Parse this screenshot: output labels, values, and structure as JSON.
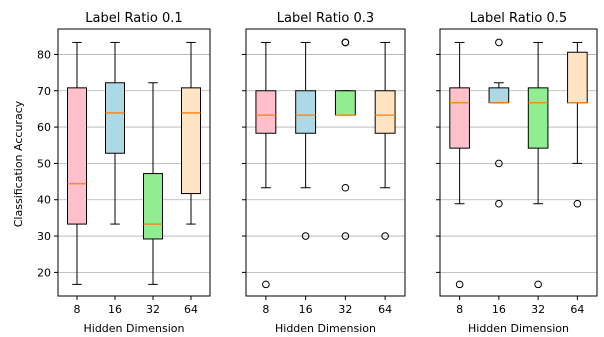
{
  "figure": {
    "ylabel": "Classification Accuracy",
    "xlabel": "Hidden Dimension"
  },
  "chart_data": [
    {
      "type": "box",
      "title": "Label Ratio 0.1",
      "xlabel": "Hidden Dimension",
      "ylabel": "Classification Accuracy",
      "categories": [
        "8",
        "16",
        "32",
        "64"
      ],
      "colors": [
        "#ffc0cb",
        "#add8e6",
        "#90ee90",
        "#ffe4c4"
      ],
      "ylim": [
        13.5,
        87
      ],
      "yticks": [
        20,
        30,
        40,
        50,
        60,
        70,
        80
      ],
      "grid": "horizontal",
      "boxes": [
        {
          "whisker_low": 16.7,
          "q1": 33.3,
          "median": 44.4,
          "q3": 70.8,
          "whisker_high": 83.3,
          "fliers": []
        },
        {
          "whisker_low": 33.3,
          "q1": 52.8,
          "median": 63.9,
          "q3": 72.2,
          "whisker_high": 83.3,
          "fliers": []
        },
        {
          "whisker_low": 16.7,
          "q1": 29.2,
          "median": 33.3,
          "q3": 47.2,
          "whisker_high": 72.2,
          "fliers": []
        },
        {
          "whisker_low": 33.3,
          "q1": 41.7,
          "median": 63.9,
          "q3": 70.8,
          "whisker_high": 83.3,
          "fliers": []
        }
      ]
    },
    {
      "type": "box",
      "title": "Label Ratio 0.3",
      "xlabel": "Hidden Dimension",
      "ylabel": "",
      "categories": [
        "8",
        "16",
        "32",
        "64"
      ],
      "colors": [
        "#ffc0cb",
        "#add8e6",
        "#90ee90",
        "#ffe4c4"
      ],
      "ylim": [
        13.5,
        87
      ],
      "yticks": [
        20,
        30,
        40,
        50,
        60,
        70,
        80
      ],
      "grid": "horizontal",
      "boxes": [
        {
          "whisker_low": 43.3,
          "q1": 58.3,
          "median": 63.3,
          "q3": 70.0,
          "whisker_high": 83.3,
          "fliers": [
            16.7
          ]
        },
        {
          "whisker_low": 43.3,
          "q1": 58.3,
          "median": 63.3,
          "q3": 70.0,
          "whisker_high": 83.3,
          "fliers": [
            30.0
          ]
        },
        {
          "whisker_low": 63.3,
          "q1": 63.3,
          "median": 63.3,
          "q3": 70.0,
          "whisker_high": 70.0,
          "fliers": [
            30.0,
            43.3,
            83.3,
            83.3
          ]
        },
        {
          "whisker_low": 43.3,
          "q1": 58.3,
          "median": 63.3,
          "q3": 70.0,
          "whisker_high": 83.3,
          "fliers": [
            30.0
          ]
        }
      ]
    },
    {
      "type": "box",
      "title": "Label Ratio 0.5",
      "xlabel": "Hidden Dimension",
      "ylabel": "",
      "categories": [
        "8",
        "16",
        "32",
        "64"
      ],
      "colors": [
        "#ffc0cb",
        "#add8e6",
        "#90ee90",
        "#ffe4c4"
      ],
      "ylim": [
        13.5,
        87
      ],
      "yticks": [
        20,
        30,
        40,
        50,
        60,
        70,
        80
      ],
      "grid": "horizontal",
      "boxes": [
        {
          "whisker_low": 38.9,
          "q1": 54.2,
          "median": 66.7,
          "q3": 70.8,
          "whisker_high": 83.3,
          "fliers": [
            16.7
          ]
        },
        {
          "whisker_low": 66.7,
          "q1": 66.7,
          "median": 66.7,
          "q3": 70.8,
          "whisker_high": 72.2,
          "fliers": [
            38.9,
            50.0,
            83.3
          ]
        },
        {
          "whisker_low": 38.9,
          "q1": 54.2,
          "median": 66.7,
          "q3": 70.8,
          "whisker_high": 83.3,
          "fliers": [
            16.7
          ]
        },
        {
          "whisker_low": 50.0,
          "q1": 66.7,
          "median": 66.7,
          "q3": 80.6,
          "whisker_high": 83.3,
          "fliers": [
            38.9
          ]
        }
      ]
    }
  ]
}
